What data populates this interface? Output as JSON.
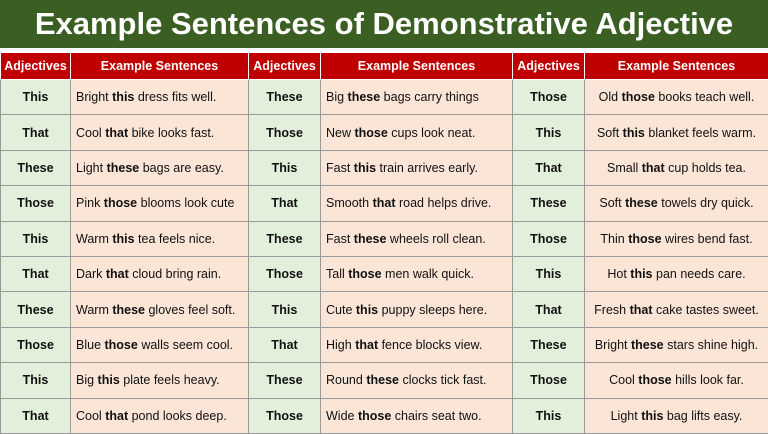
{
  "title": "Example Sentences of Demonstrative Adjective",
  "table": {
    "header": [
      "Adjectives",
      "Example Sentences",
      "Adjectives",
      "Example Sentences",
      "Adjectives",
      "Example Sentences"
    ],
    "rows": [
      [
        {
          "adjective": "This",
          "sentence": [
            "Bright ",
            "this",
            " dress fits well."
          ]
        },
        {
          "adjective": "These",
          "sentence": [
            "Big ",
            "these",
            " bags carry things"
          ]
        },
        {
          "adjective": "Those",
          "sentence": [
            "Old ",
            "those",
            " books teach well."
          ]
        }
      ],
      [
        {
          "adjective": "That",
          "sentence": [
            "Cool ",
            "that",
            " bike looks fast."
          ]
        },
        {
          "adjective": "Those",
          "sentence": [
            "New ",
            "those",
            " cups look neat."
          ]
        },
        {
          "adjective": "This",
          "sentence": [
            "Soft ",
            "this",
            " blanket feels warm."
          ]
        }
      ],
      [
        {
          "adjective": "These",
          "sentence": [
            "Light ",
            "these",
            " bags are easy."
          ]
        },
        {
          "adjective": "This",
          "sentence": [
            "Fast ",
            "this",
            " train arrives early."
          ]
        },
        {
          "adjective": "That",
          "sentence": [
            "Small ",
            "that",
            " cup holds tea."
          ]
        }
      ],
      [
        {
          "adjective": "Those",
          "sentence": [
            "Pink ",
            "those",
            " blooms look cute"
          ]
        },
        {
          "adjective": "That",
          "sentence": [
            "Smooth ",
            "that",
            " road helps drive."
          ]
        },
        {
          "adjective": "These",
          "sentence": [
            "Soft ",
            "these",
            " towels dry quick."
          ]
        }
      ],
      [
        {
          "adjective": "This",
          "sentence": [
            "Warm ",
            "this",
            " tea feels nice."
          ]
        },
        {
          "adjective": "These",
          "sentence": [
            "Fast ",
            "these",
            " wheels roll clean."
          ]
        },
        {
          "adjective": "Those",
          "sentence": [
            "Thin ",
            "those",
            " wires bend fast."
          ]
        }
      ],
      [
        {
          "adjective": "That",
          "sentence": [
            "Dark ",
            "that",
            " cloud bring rain."
          ]
        },
        {
          "adjective": "Those",
          "sentence": [
            "Tall ",
            "those",
            " men walk quick."
          ]
        },
        {
          "adjective": "This",
          "sentence": [
            "Hot ",
            "this",
            " pan needs care."
          ]
        }
      ],
      [
        {
          "adjective": "These",
          "sentence": [
            "Warm ",
            "these",
            " gloves feel soft."
          ]
        },
        {
          "adjective": "This",
          "sentence": [
            "Cute ",
            "this",
            " puppy sleeps here."
          ]
        },
        {
          "adjective": "That",
          "sentence": [
            "Fresh ",
            "that",
            " cake tastes sweet."
          ]
        }
      ],
      [
        {
          "adjective": "Those",
          "sentence": [
            "Blue ",
            "those",
            " walls seem cool."
          ]
        },
        {
          "adjective": "That",
          "sentence": [
            "High ",
            "that",
            " fence blocks view."
          ]
        },
        {
          "adjective": "These",
          "sentence": [
            "Bright ",
            "these",
            " stars shine high."
          ]
        }
      ],
      [
        {
          "adjective": "This",
          "sentence": [
            "Big ",
            "this",
            " plate feels heavy."
          ]
        },
        {
          "adjective": "These",
          "sentence": [
            "Round ",
            "these",
            " clocks tick fast."
          ]
        },
        {
          "adjective": "Those",
          "sentence": [
            "Cool ",
            "those",
            " hills look far."
          ]
        }
      ],
      [
        {
          "adjective": "That",
          "sentence": [
            "Cool ",
            "that",
            " pond looks deep."
          ]
        },
        {
          "adjective": "Those",
          "sentence": [
            "Wide ",
            "those",
            " chairs seat two."
          ]
        },
        {
          "adjective": "This",
          "sentence": [
            "Light ",
            "this",
            " bag lifts easy."
          ]
        }
      ]
    ]
  }
}
